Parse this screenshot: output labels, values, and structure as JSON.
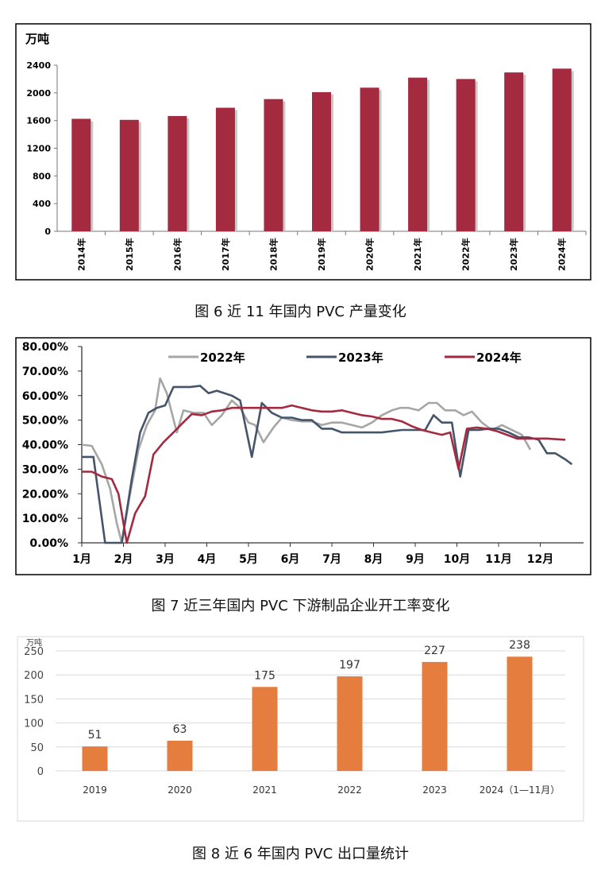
{
  "chart_data": [
    {
      "type": "bar",
      "unit_label": "万吨",
      "categories": [
        "2014年",
        "2015年",
        "2016年",
        "2017年",
        "2018年",
        "2019年",
        "2020年",
        "2021年",
        "2022年",
        "2023年",
        "2024年"
      ],
      "values": [
        1625,
        1610,
        1665,
        1785,
        1910,
        2010,
        2075,
        2220,
        2200,
        2295,
        2350
      ],
      "yticks": [
        "0",
        "400",
        "800",
        "1200",
        "1600",
        "2000",
        "2400"
      ],
      "ylim": [
        0,
        2400
      ],
      "bar_color": "#a42a40",
      "grid": false
    },
    {
      "type": "line",
      "months": [
        "1月",
        "2月",
        "3月",
        "4月",
        "5月",
        "6月",
        "7月",
        "8月",
        "9月",
        "10月",
        "11月",
        "12月"
      ],
      "yticks": [
        "0.00%",
        "10.00%",
        "20.00%",
        "30.00%",
        "40.00%",
        "50.00%",
        "60.00%",
        "70.00%",
        "80.00%"
      ],
      "ylim": [
        0,
        80
      ],
      "legend_position": "top",
      "series": [
        {
          "name": "2022年",
          "color": "#a6a6a6",
          "points": [
            [
              0.0,
              40
            ],
            [
              0.3,
              39.5
            ],
            [
              0.6,
              32
            ],
            [
              0.85,
              22
            ],
            [
              1.05,
              8
            ],
            [
              1.2,
              0
            ],
            [
              1.45,
              20
            ],
            [
              1.7,
              38
            ],
            [
              1.95,
              48
            ],
            [
              2.2,
              54
            ],
            [
              2.35,
              67
            ],
            [
              2.55,
              61
            ],
            [
              2.85,
              45
            ],
            [
              3.05,
              54
            ],
            [
              3.35,
              53
            ],
            [
              3.65,
              53
            ],
            [
              3.9,
              48
            ],
            [
              4.2,
              52
            ],
            [
              4.5,
              58
            ],
            [
              4.75,
              55
            ],
            [
              5.0,
              49
            ],
            [
              5.2,
              48
            ],
            [
              5.45,
              41
            ],
            [
              5.75,
              47
            ],
            [
              6.0,
              51
            ],
            [
              6.3,
              50
            ],
            [
              6.6,
              49.5
            ],
            [
              6.9,
              49.5
            ],
            [
              7.2,
              48
            ],
            [
              7.5,
              49
            ],
            [
              7.8,
              49
            ],
            [
              8.1,
              48
            ],
            [
              8.4,
              47
            ],
            [
              8.7,
              49
            ],
            [
              9.0,
              52
            ],
            [
              9.3,
              54
            ],
            [
              9.55,
              55
            ],
            [
              9.8,
              55
            ],
            [
              10.1,
              54
            ],
            [
              10.4,
              57
            ],
            [
              10.65,
              57
            ],
            [
              10.9,
              54
            ],
            [
              11.2,
              54
            ],
            [
              11.45,
              52
            ],
            [
              11.7,
              53.5
            ],
            [
              12.0,
              49
            ],
            [
              12.3,
              46
            ],
            [
              12.6,
              48
            ],
            [
              12.9,
              46
            ],
            [
              13.2,
              44
            ],
            [
              13.45,
              38
            ]
          ]
        },
        {
          "name": "2023年",
          "color": "#44546a",
          "points": [
            [
              0.0,
              35
            ],
            [
              0.35,
              35
            ],
            [
              0.7,
              0
            ],
            [
              0.95,
              0
            ],
            [
              1.2,
              0
            ],
            [
              1.5,
              26
            ],
            [
              1.75,
              45
            ],
            [
              2.0,
              53
            ],
            [
              2.25,
              55
            ],
            [
              2.5,
              56
            ],
            [
              2.75,
              63.5
            ],
            [
              3.25,
              63.5
            ],
            [
              3.55,
              64
            ],
            [
              3.8,
              61
            ],
            [
              4.05,
              62
            ],
            [
              4.5,
              60
            ],
            [
              4.75,
              58
            ],
            [
              5.1,
              35
            ],
            [
              5.4,
              57
            ],
            [
              5.7,
              53
            ],
            [
              6.0,
              51
            ],
            [
              6.3,
              51
            ],
            [
              6.6,
              50
            ],
            [
              6.9,
              50
            ],
            [
              7.2,
              46.5
            ],
            [
              7.5,
              46.5
            ],
            [
              7.8,
              45
            ],
            [
              8.1,
              45
            ],
            [
              8.4,
              45
            ],
            [
              8.7,
              45
            ],
            [
              9.0,
              45
            ],
            [
              9.3,
              45.5
            ],
            [
              9.6,
              46
            ],
            [
              10.0,
              46
            ],
            [
              10.3,
              46
            ],
            [
              10.55,
              52
            ],
            [
              10.8,
              49
            ],
            [
              11.1,
              49
            ],
            [
              11.35,
              27
            ],
            [
              11.6,
              46
            ],
            [
              11.9,
              46
            ],
            [
              12.2,
              46.5
            ],
            [
              12.5,
              46.5
            ],
            [
              12.8,
              45
            ],
            [
              13.1,
              43
            ],
            [
              13.4,
              43
            ],
            [
              13.7,
              42
            ],
            [
              13.95,
              36.5
            ],
            [
              14.2,
              36.5
            ],
            [
              14.5,
              34
            ],
            [
              14.7,
              32
            ]
          ]
        },
        {
          "name": "2024年",
          "color": "#a42a40",
          "points": [
            [
              0.0,
              29
            ],
            [
              0.3,
              29
            ],
            [
              0.6,
              27
            ],
            [
              0.9,
              26
            ],
            [
              1.1,
              20
            ],
            [
              1.35,
              0
            ],
            [
              1.6,
              12
            ],
            [
              1.9,
              19
            ],
            [
              2.15,
              36
            ],
            [
              2.45,
              41
            ],
            [
              2.75,
              45
            ],
            [
              3.0,
              48.5
            ],
            [
              3.3,
              52.5
            ],
            [
              3.6,
              52
            ],
            [
              3.9,
              53.5
            ],
            [
              4.2,
              54
            ],
            [
              4.5,
              55
            ],
            [
              4.8,
              55
            ],
            [
              5.1,
              55
            ],
            [
              5.4,
              55
            ],
            [
              5.7,
              55
            ],
            [
              6.0,
              55
            ],
            [
              6.3,
              56
            ],
            [
              6.6,
              55
            ],
            [
              6.9,
              54
            ],
            [
              7.2,
              53.5
            ],
            [
              7.5,
              53.5
            ],
            [
              7.8,
              54
            ],
            [
              8.1,
              53
            ],
            [
              8.4,
              52
            ],
            [
              8.7,
              51.5
            ],
            [
              9.0,
              50.5
            ],
            [
              9.3,
              50.5
            ],
            [
              9.6,
              49.5
            ],
            [
              9.9,
              47.5
            ],
            [
              10.2,
              46
            ],
            [
              10.5,
              45
            ],
            [
              10.8,
              44
            ],
            [
              11.05,
              45
            ],
            [
              11.3,
              30
            ],
            [
              11.55,
              46.5
            ],
            [
              11.85,
              47
            ],
            [
              12.15,
              46.5
            ],
            [
              12.45,
              45.5
            ],
            [
              12.75,
              44
            ],
            [
              13.05,
              42.5
            ],
            [
              13.35,
              42.5
            ],
            [
              13.65,
              42.5
            ],
            [
              13.95,
              42.5
            ],
            [
              14.25,
              42.2
            ],
            [
              14.5,
              42
            ]
          ]
        }
      ]
    },
    {
      "type": "bar",
      "unit_label": "万吨",
      "categories": [
        "2019",
        "2020",
        "2021",
        "2022",
        "2023",
        "2024（1—11月）"
      ],
      "values": [
        51,
        63,
        175,
        197,
        227,
        238
      ],
      "data_labels": [
        "51",
        "63",
        "175",
        "197",
        "227",
        "238"
      ],
      "yticks": [
        "0",
        "50",
        "100",
        "150",
        "200",
        "250"
      ],
      "ylim": [
        0,
        250
      ],
      "bar_color": "#e57d3f",
      "grid": true
    }
  ],
  "captions": {
    "fig6": "图 6 近 11 年国内 PVC 产量变化",
    "fig7": "图 7 近三年国内 PVC 下游制品企业开工率变化",
    "fig8": "图 8  近 6 年国内 PVC 出口量统计"
  }
}
